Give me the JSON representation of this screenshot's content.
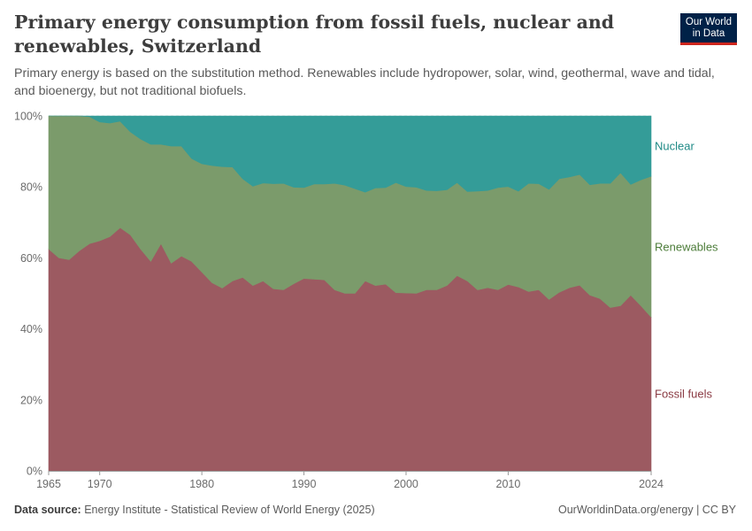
{
  "header": {
    "title": "Primary energy consumption from fossil fuels, nuclear and renewables, Switzerland",
    "subtitle": "Primary energy is based on the substitution method. Renewables include hydropower, solar, wind, geothermal, wave and tidal, and bioenergy, but not traditional biofuels."
  },
  "logo": {
    "line1": "Our World",
    "line2": "in Data"
  },
  "footer": {
    "source_label": "Data source:",
    "source_text": "Energy Institute - Statistical Review of World Energy (2025)",
    "right_text": "OurWorldinData.org/energy | CC BY"
  },
  "colors": {
    "fossil": "#9c5a61",
    "renewables": "#7b9b6b",
    "nuclear": "#349c98",
    "fossil_label": "#8a3a43",
    "renewables_label": "#4d7d3a",
    "nuclear_label": "#1f8a86",
    "grid": "#dddddd"
  },
  "chart_data": {
    "type": "area",
    "stacked": true,
    "normalized": true,
    "x_tick_labels": [
      "1965",
      "1970",
      "1980",
      "1990",
      "2000",
      "2010",
      "2024"
    ],
    "y_tick_labels": [
      "0%",
      "20%",
      "40%",
      "60%",
      "80%",
      "100%"
    ],
    "ylim": [
      0,
      100
    ],
    "xlim": [
      1965,
      2024
    ],
    "grid": true,
    "legend": "right-side labels",
    "x": [
      1965,
      1966,
      1967,
      1968,
      1969,
      1970,
      1971,
      1972,
      1973,
      1974,
      1975,
      1976,
      1977,
      1978,
      1979,
      1980,
      1981,
      1982,
      1983,
      1984,
      1985,
      1986,
      1987,
      1988,
      1989,
      1990,
      1991,
      1992,
      1993,
      1994,
      1995,
      1996,
      1997,
      1998,
      1999,
      2000,
      2001,
      2002,
      2003,
      2004,
      2005,
      2006,
      2007,
      2008,
      2009,
      2010,
      2011,
      2012,
      2013,
      2014,
      2015,
      2016,
      2017,
      2018,
      2019,
      2020,
      2021,
      2022,
      2023,
      2024
    ],
    "series": [
      {
        "name": "Fossil fuels",
        "values": [
          62.5,
          60,
          59.5,
          62,
          64,
          64.8,
          66,
          68.5,
          66.5,
          62.5,
          59,
          64,
          58.5,
          60.5,
          59,
          56,
          53,
          51.5,
          53.5,
          54.5,
          52.2,
          53.5,
          51.3,
          51,
          52.7,
          54.2,
          54,
          53.8,
          51,
          50,
          50,
          53.5,
          52.2,
          52.6,
          50.2,
          50.1,
          50,
          51,
          51,
          52.2,
          55,
          53.5,
          51,
          51.6,
          51,
          52.5,
          51.8,
          50.5,
          51,
          48.3,
          50.3,
          51.6,
          52.3,
          49.5,
          48.5,
          46,
          46.5,
          49.5,
          46.5,
          43.3
        ]
      },
      {
        "name": "Renewables",
        "values": [
          37.5,
          40,
          40.5,
          38,
          35.8,
          33.5,
          32,
          30,
          29,
          31,
          33,
          28,
          33,
          31,
          29,
          30.5,
          33,
          34.2,
          32.1,
          27.8,
          28,
          27.6,
          29.6,
          30,
          27.2,
          25.6,
          26.8,
          27,
          30,
          30.5,
          29.5,
          25,
          27.5,
          27.2,
          31,
          30,
          29.9,
          28,
          27.9,
          27,
          26.2,
          25.2,
          27.8,
          27.4,
          28.8,
          27.6,
          27,
          30.5,
          29.9,
          31,
          32,
          31.2,
          31.2,
          31.1,
          32.5,
          35,
          37.5,
          31.2,
          35.5,
          39.7
        ]
      },
      {
        "name": "Nuclear",
        "values": [
          0,
          0,
          0,
          0,
          0.2,
          1.7,
          2,
          1.5,
          4.5,
          6.5,
          8,
          8,
          8.5,
          8.5,
          12,
          13.5,
          14,
          14.3,
          14.4,
          17.7,
          19.8,
          18.9,
          19.1,
          19,
          20.1,
          20.2,
          19.2,
          19.2,
          19,
          19.5,
          20.5,
          21.5,
          20.3,
          20.2,
          18.8,
          19.9,
          20.1,
          21,
          21.1,
          20.8,
          18.8,
          21.3,
          21.2,
          21,
          20.2,
          19.9,
          21.2,
          19,
          19.1,
          20.7,
          17.7,
          17.2,
          16.5,
          19.4,
          19,
          19,
          16,
          19.3,
          18,
          17
        ]
      }
    ],
    "series_labels": [
      "Nuclear",
      "Renewables",
      "Fossil fuels"
    ]
  }
}
